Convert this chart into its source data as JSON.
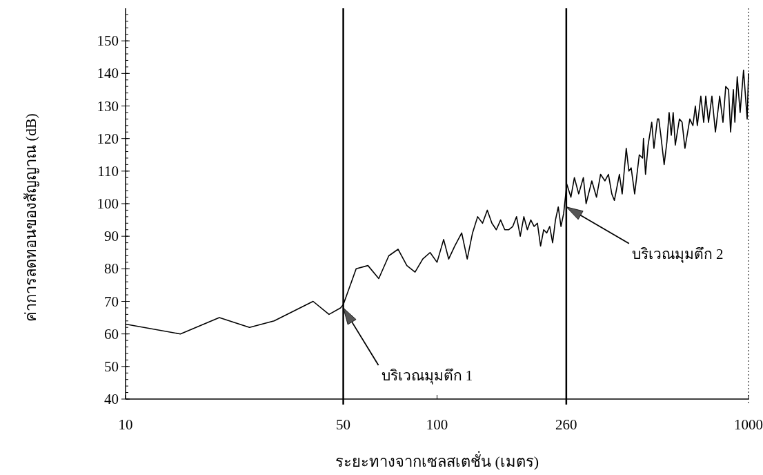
{
  "chart_data": {
    "type": "line",
    "xlabel": "ระยะทางจากเซลสเตชั่น (เมตร)",
    "ylabel": "ค่าการลดทอนของสัญญาณ  (dB)",
    "log": "x",
    "xlim": [
      10,
      1000
    ],
    "ylim": [
      40,
      160
    ],
    "xticks": [
      10,
      50,
      100,
      260,
      1000
    ],
    "yticks": [
      40,
      50,
      60,
      70,
      80,
      90,
      100,
      110,
      120,
      130,
      140,
      150
    ],
    "grid": false,
    "marker": "none",
    "line_style": "solid",
    "ref_lines": [
      {
        "axis": "x",
        "value": 50,
        "color": "#000000",
        "line_style": "solid"
      },
      {
        "axis": "x",
        "value": 260,
        "color": "#000000",
        "line_style": "solid"
      },
      {
        "axis": "x",
        "value": 1000,
        "color": "#000000",
        "line_style": "dotted"
      }
    ],
    "annotations": [
      {
        "text": "บริเวณมุมตึก 1",
        "x": 50,
        "y": 68
      },
      {
        "text": "บริเวณมุมตึก 2",
        "x": 260,
        "y": 99
      }
    ],
    "series": [
      {
        "color": "#000000",
        "x": [
          10,
          15,
          20,
          25,
          30,
          40,
          45,
          49,
          50,
          55,
          60,
          65,
          70,
          75,
          80,
          85,
          90,
          95,
          100,
          105,
          109,
          114,
          120,
          125,
          130,
          135,
          140,
          145,
          150,
          155,
          160,
          165,
          170,
          175,
          180,
          185,
          190,
          195,
          200,
          205,
          210,
          215,
          220,
          225,
          230,
          235,
          240,
          245,
          250,
          255,
          261,
          269,
          276,
          285,
          295,
          301,
          314,
          325,
          335,
          346,
          355,
          364,
          371,
          385,
          393,
          405,
          413,
          420,
          431,
          446,
          457,
          460,
          467,
          476,
          489,
          497,
          510,
          515,
          523,
          536,
          547,
          556,
          565,
          573,
          582,
          600,
          612,
          625,
          648,
          663,
          675,
          685,
          703,
          718,
          729,
          744,
          763,
          783,
          808,
          828,
          845,
          863,
          876,
          894,
          904,
          920,
          940,
          964,
          990,
          1000
        ],
        "values": [
          63,
          60,
          65,
          62,
          64,
          70,
          66,
          68,
          69,
          80,
          81,
          77,
          84,
          86,
          81,
          79,
          83,
          85,
          82,
          89,
          83,
          87,
          91,
          83,
          91,
          96,
          94,
          98,
          94,
          92,
          95,
          92,
          92,
          93,
          96,
          90,
          96,
          92,
          95,
          93,
          94,
          87,
          92,
          91,
          93,
          88,
          95,
          99,
          93,
          97,
          106,
          102,
          108,
          103,
          108,
          100,
          107,
          102,
          109,
          107,
          109,
          103,
          101,
          109,
          103,
          117,
          110,
          111,
          103,
          115,
          114,
          120,
          109,
          118,
          125,
          117,
          126,
          126,
          121,
          112,
          119,
          128,
          121,
          128,
          118,
          126,
          125,
          117,
          126,
          124,
          130,
          124,
          133,
          125,
          133,
          125,
          133,
          122,
          133,
          125,
          136,
          135,
          122,
          135,
          125,
          139,
          128,
          141,
          126,
          140
        ]
      }
    ]
  }
}
